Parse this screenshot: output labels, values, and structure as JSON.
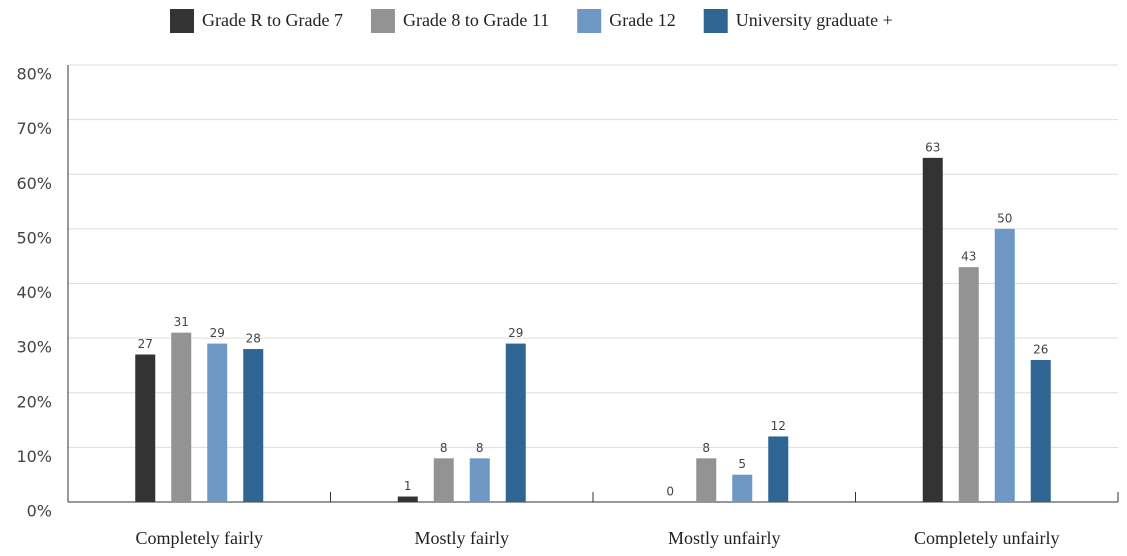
{
  "chart_data": {
    "type": "bar",
    "categories": [
      "Completely fairly",
      "Mostly fairly",
      "Mostly unfairly",
      "Completely unfairly"
    ],
    "series": [
      {
        "name": "Grade R to Grade 7",
        "color": "#333333",
        "values": [
          27,
          1,
          0,
          63
        ]
      },
      {
        "name": "Grade 8 to Grade 11",
        "color": "#939393",
        "values": [
          31,
          8,
          8,
          43
        ]
      },
      {
        "name": "Grade 12",
        "color": "#6f97c4",
        "values": [
          29,
          8,
          5,
          50
        ]
      },
      {
        "name": "University graduate +",
        "color": "#2e6592",
        "values": [
          28,
          29,
          12,
          26
        ]
      }
    ],
    "ylim": [
      0,
      80
    ],
    "yticks": [
      {
        "value": 0,
        "label": "0%"
      },
      {
        "value": 10,
        "label": "10%"
      },
      {
        "value": 20,
        "label": "20%"
      },
      {
        "value": 30,
        "label": "30%"
      },
      {
        "value": 40,
        "label": "40%"
      },
      {
        "value": 50,
        "label": "50%"
      },
      {
        "value": 60,
        "label": "60%"
      },
      {
        "value": 70,
        "label": "70%"
      },
      {
        "value": 80,
        "label": "80%"
      }
    ],
    "grid": true,
    "legend": "top"
  }
}
